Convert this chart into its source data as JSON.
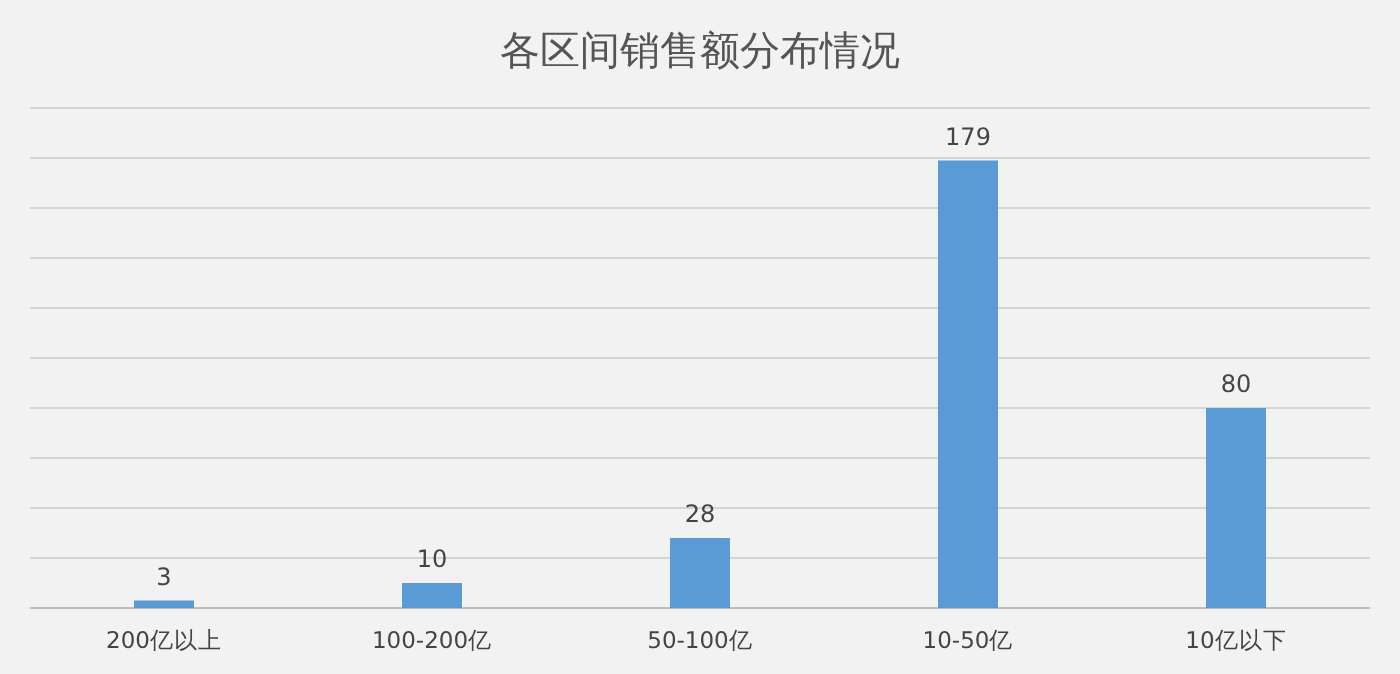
{
  "chart_data": {
    "type": "bar",
    "title": "各区间销售额分布情况",
    "categories": [
      "200亿以上",
      "100-200亿",
      "50-100亿",
      "10-50亿",
      "10亿以下"
    ],
    "values": [
      3,
      10,
      28,
      179,
      80
    ],
    "color": "#5b9bd5",
    "data_labels": true,
    "grid": "y",
    "ylim": [
      0,
      200
    ],
    "yticks": [
      {
        "value": 0,
        "label": null
      },
      {
        "value": 20,
        "label": null
      },
      {
        "value": 40,
        "label": null
      },
      {
        "value": 60,
        "label": null
      },
      {
        "value": 80,
        "label": null
      },
      {
        "value": 100,
        "label": null
      },
      {
        "value": 120,
        "label": null
      },
      {
        "value": 140,
        "label": null
      },
      {
        "value": 160,
        "label": null
      },
      {
        "value": 180,
        "label": null
      },
      {
        "value": 200,
        "label": null
      }
    ]
  }
}
